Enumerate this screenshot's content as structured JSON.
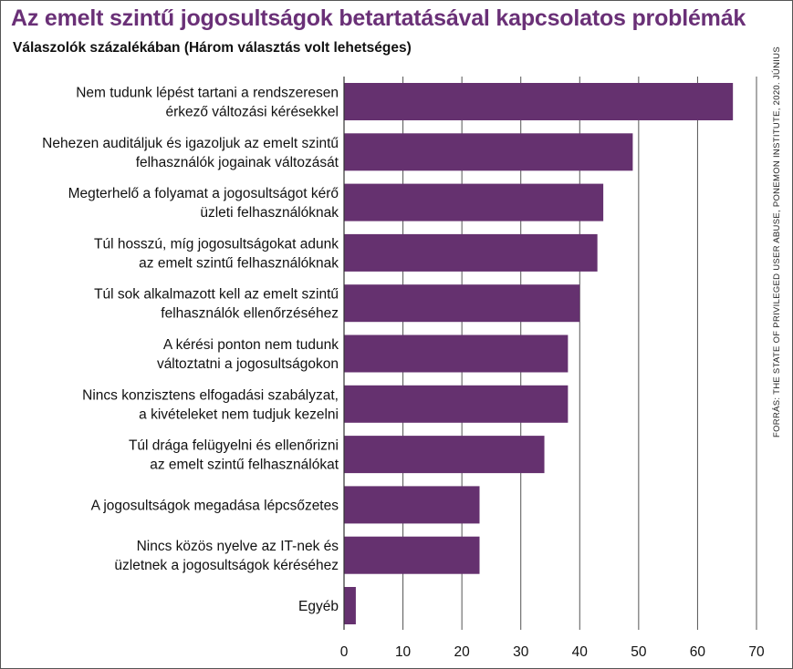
{
  "title": "Az emelt szintű jogosultságok betartatásával kapcsolatos problémák",
  "subtitle": "Válaszolók százalékában (Három választás volt lehetséges)",
  "source": "FORRÁS: THE STATE OF PRIVILEGED USER ABUSE, PONEMON INSTITUTE, 2020. JÚNIUS",
  "colors": {
    "bar": "#65316f",
    "title": "#6a3077",
    "grid": "#555555"
  },
  "chart_data": {
    "type": "bar",
    "orientation": "horizontal",
    "categories": [
      [
        "Nem tudunk lépést tartani a rendszeresen",
        "érkező változási kérésekkel"
      ],
      [
        "Nehezen auditáljuk és igazoljuk az emelt szintű",
        "felhasználók jogainak változását"
      ],
      [
        "Megterhelő a folyamat a jogosultságot kérő",
        "üzleti felhasználóknak"
      ],
      [
        "Túl hosszú, míg jogosultságokat adunk",
        "az emelt szintű felhasználóknak"
      ],
      [
        "Túl sok alkalmazott kell az emelt szintű",
        "felhasználók ellenőrzéséhez"
      ],
      [
        "A kérési ponton nem tudunk",
        "változtatni a jogosultságokon"
      ],
      [
        "Nincs konzisztens elfogadási szabályzat,",
        "a kivételeket nem tudjuk kezelni"
      ],
      [
        "Túl drága felügyelni és ellenőrizni",
        "az emelt szintű felhasználókat"
      ],
      [
        "A jogosultságok megadása lépcsőzetes"
      ],
      [
        "Nincs közös nyelve az IT-nek és",
        "üzletnek a jogosultságok kéréséhez"
      ],
      [
        "Egyéb"
      ]
    ],
    "values": [
      66,
      49,
      44,
      43,
      40,
      38,
      38,
      34,
      23,
      23,
      2
    ],
    "xlim": [
      0,
      70
    ],
    "xticks": [
      "0",
      "10",
      "20",
      "30",
      "40",
      "50",
      "60",
      "70"
    ],
    "grid": true
  }
}
